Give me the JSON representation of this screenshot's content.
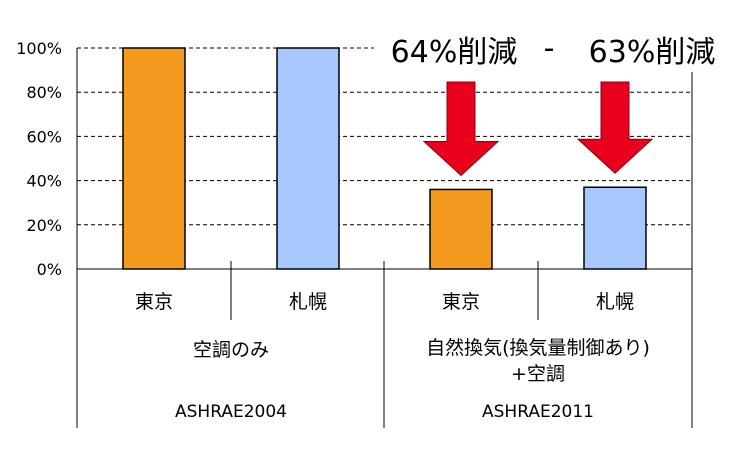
{
  "chart_data": {
    "type": "bar",
    "ylim": [
      0,
      100
    ],
    "yticks": [
      "0%",
      "20%",
      "40%",
      "60%",
      "80%",
      "100%"
    ],
    "grid": true,
    "categories": [
      "東京",
      "札幌",
      "東京",
      "札幌"
    ],
    "values": [
      100,
      100,
      36,
      37
    ],
    "bar_colors": [
      "#f49a1f",
      "#a6c8ff",
      "#f49a1f",
      "#a6c8ff"
    ],
    "groups": [
      {
        "label_lines": [
          "空調のみ"
        ],
        "standard": "ASHRAE2004"
      },
      {
        "label_lines": [
          "自然換気(換気量制御あり)",
          "+空調"
        ],
        "standard": "ASHRAE2011"
      }
    ],
    "annotations": [
      {
        "text": "64%削減",
        "bar_index": 2
      },
      {
        "text": "63%削減",
        "bar_index": 3
      }
    ],
    "arrow_color": "#e8001c"
  }
}
